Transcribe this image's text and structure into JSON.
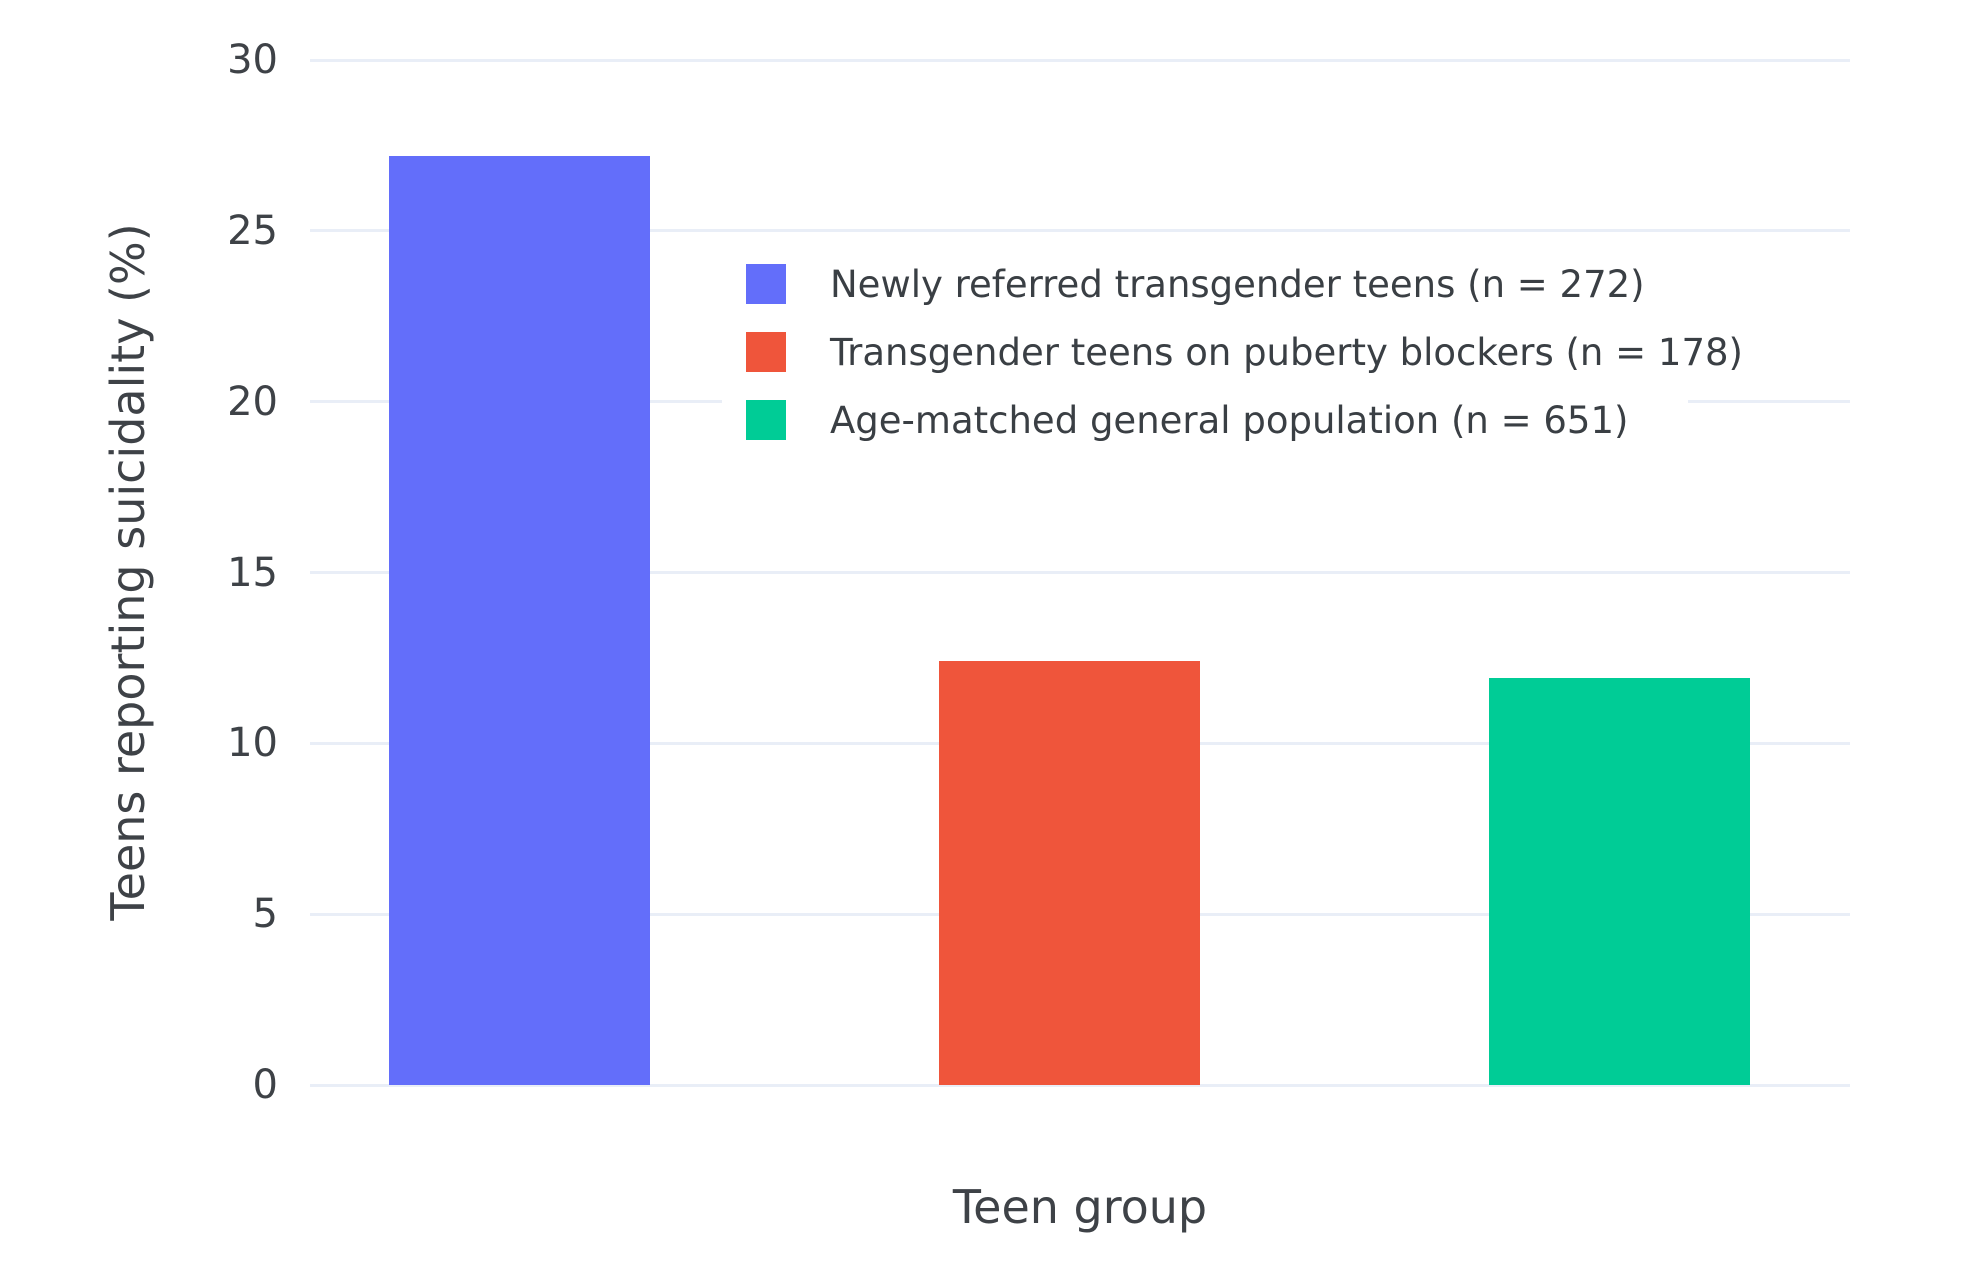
{
  "chart_data": {
    "type": "bar",
    "categories": [
      "Newly referred transgender teens (n = 272)",
      "Transgender teens on puberty blockers (n = 178)",
      "Age-matched general population (n = 651)"
    ],
    "values": [
      27.2,
      12.4,
      11.9
    ],
    "colors": [
      "#636EFA",
      "#EF553B",
      "#00CC96"
    ],
    "title": "",
    "xlabel": "Teen group",
    "ylabel": "Teens reporting suicidality (%)",
    "ylim": [
      0,
      30
    ],
    "yticks": [
      0,
      5,
      10,
      15,
      20,
      25,
      30
    ],
    "grid": true,
    "legend_position": "inside top-center",
    "background_color": "#FFFFFF",
    "gridline_color": "#E9EEF7",
    "text_color": "#3E4247"
  }
}
